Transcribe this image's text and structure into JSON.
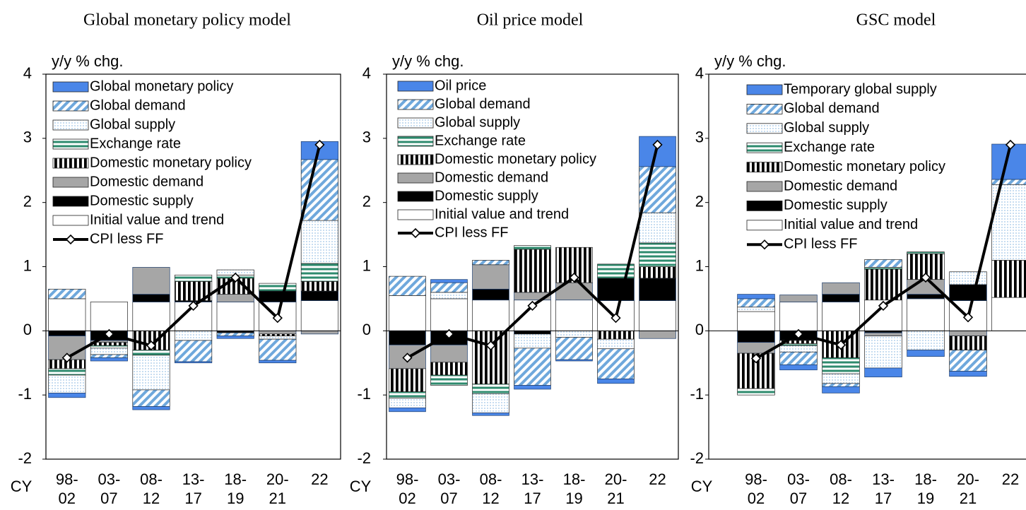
{
  "chart_data": [
    {
      "type": "bar",
      "title": "Global monetary policy model",
      "y_label": "y/y % chg.",
      "x_label": "CY",
      "categories": [
        [
          "98-",
          "02"
        ],
        [
          "03-",
          "07"
        ],
        [
          "08-",
          "12"
        ],
        [
          "13-",
          "17"
        ],
        [
          "18-",
          "19"
        ],
        [
          "20-",
          "21"
        ],
        [
          "22"
        ]
      ],
      "ylim": [
        -2,
        4
      ],
      "yticks": [
        -2,
        -1,
        0,
        1,
        2,
        3,
        4
      ],
      "series": [
        {
          "name": "Global monetary policy",
          "color": "#4a86e8",
          "pattern": "solid",
          "values": [
            -0.07,
            -0.05,
            -0.05,
            -0.02,
            -0.04,
            -0.04,
            0.28
          ]
        },
        {
          "name": "Global demand",
          "color": "#6fa8dc",
          "pattern": "diagonal",
          "values": [
            0.15,
            -0.05,
            -0.26,
            -0.33,
            -0.05,
            -0.33,
            0.95
          ]
        },
        {
          "name": "Global supply",
          "color": "#9fc5e8",
          "pattern": "dots",
          "values": [
            -0.28,
            -0.1,
            -0.54,
            -0.15,
            0.08,
            -0.05,
            0.67
          ]
        },
        {
          "name": "Exchange rate",
          "color": "#2e8b6e",
          "pattern": "hstripe",
          "values": [
            -0.1,
            -0.04,
            -0.08,
            0.1,
            0.05,
            0.12,
            0.28
          ]
        },
        {
          "name": "Domestic monetary policy",
          "color": "#000000",
          "pattern": "vstripe",
          "values": [
            -0.14,
            -0.05,
            -0.3,
            0.3,
            0.25,
            -0.03,
            0.15
          ]
        },
        {
          "name": "Domestic demand",
          "color": "#a6a6a6",
          "pattern": "solid",
          "values": [
            -0.37,
            -0.03,
            0.42,
            0,
            0.12,
            -0.05,
            -0.05
          ]
        },
        {
          "name": "Domestic supply",
          "color": "#000000",
          "pattern": "solid",
          "values": [
            -0.08,
            -0.15,
            0.12,
            0.02,
            -0.03,
            0.17,
            0.15
          ]
        },
        {
          "name": "Initial value and trend",
          "color": "#ffffff",
          "pattern": "solid",
          "values": [
            0.5,
            0.45,
            0.45,
            0.45,
            0.45,
            0.45,
            0.47
          ]
        },
        {
          "name": "CPI less FF",
          "color": "#000000",
          "type": "line",
          "values": [
            -0.42,
            -0.05,
            -0.23,
            0.39,
            0.83,
            0.2,
            2.9
          ]
        }
      ]
    },
    {
      "type": "bar",
      "title": "Oil price model",
      "y_label": "y/y % chg.",
      "x_label": "CY",
      "categories": [
        [
          "98-",
          "02"
        ],
        [
          "03-",
          "07"
        ],
        [
          "08-",
          "12"
        ],
        [
          "13-",
          "17"
        ],
        [
          "18-",
          "19"
        ],
        [
          "20-",
          "21"
        ],
        [
          "22"
        ]
      ],
      "ylim": [
        -2,
        4
      ],
      "yticks": [
        -2,
        -1,
        0,
        1,
        2,
        3,
        4
      ],
      "series": [
        {
          "name": "Oil price",
          "color": "#4a86e8",
          "pattern": "solid",
          "values": [
            -0.06,
            0.05,
            -0.04,
            -0.06,
            -0.02,
            -0.07,
            0.47
          ]
        },
        {
          "name": "Global demand",
          "color": "#6fa8dc",
          "pattern": "diagonal",
          "values": [
            0.3,
            0.15,
            0.07,
            -0.58,
            -0.35,
            -0.47,
            0.72
          ]
        },
        {
          "name": "Global supply",
          "color": "#9fc5e8",
          "pattern": "dots",
          "values": [
            -0.15,
            0.1,
            -0.3,
            -0.22,
            -0.1,
            -0.15,
            0.47
          ]
        },
        {
          "name": "Exchange rate",
          "color": "#2e8b6e",
          "pattern": "hstripe",
          "values": [
            -0.1,
            -0.16,
            -0.15,
            0.06,
            0,
            0.22,
            0.37
          ]
        },
        {
          "name": "Domestic monetary policy",
          "color": "#000000",
          "pattern": "vstripe",
          "values": [
            -0.36,
            -0.2,
            -0.83,
            0.67,
            0.55,
            -0.13,
            0.18
          ]
        },
        {
          "name": "Domestic demand",
          "color": "#a6a6a6",
          "pattern": "solid",
          "values": [
            -0.37,
            -0.27,
            0.38,
            0.12,
            0.27,
            0,
            -0.12
          ]
        },
        {
          "name": "Domestic supply",
          "color": "#000000",
          "pattern": "solid",
          "values": [
            -0.22,
            -0.22,
            0.17,
            -0.05,
            0,
            0.35,
            0.35
          ]
        },
        {
          "name": "Initial value and trend",
          "color": "#ffffff",
          "pattern": "solid",
          "values": [
            0.55,
            0.5,
            0.48,
            0.48,
            0.48,
            0.47,
            0.47
          ]
        },
        {
          "name": "CPI less FF",
          "color": "#000000",
          "type": "line",
          "values": [
            -0.42,
            -0.05,
            -0.23,
            0.39,
            0.83,
            0.2,
            2.9
          ]
        }
      ]
    },
    {
      "type": "bar",
      "title": "GSC model",
      "y_label": "y/y % chg.",
      "x_label": "CY",
      "categories": [
        [
          "98-",
          "02"
        ],
        [
          "03-",
          "07"
        ],
        [
          "08-",
          "12"
        ],
        [
          "13-",
          "17"
        ],
        [
          "18-",
          "19"
        ],
        [
          "20-",
          "21"
        ],
        [
          "22"
        ]
      ],
      "ylim": [
        -2,
        4
      ],
      "yticks": [
        -2,
        -1,
        0,
        1,
        2,
        3,
        4
      ],
      "series": [
        {
          "name": "Temporary global supply",
          "color": "#4a86e8",
          "pattern": "solid",
          "values": [
            0.07,
            -0.08,
            -0.1,
            -0.14,
            -0.1,
            -0.08,
            0.55
          ]
        },
        {
          "name": "Global demand",
          "color": "#6fa8dc",
          "pattern": "diagonal",
          "values": [
            0.13,
            -0.2,
            -0.05,
            0.12,
            0,
            -0.33,
            0.08
          ]
        },
        {
          "name": "Global supply",
          "color": "#9fc5e8",
          "pattern": "dots",
          "values": [
            0.07,
            -0.1,
            -0.15,
            -0.5,
            -0.3,
            0.2,
            1.18
          ]
        },
        {
          "name": "Exchange rate",
          "color": "#2e8b6e",
          "pattern": "hstripe",
          "values": [
            -0.1,
            -0.03,
            -0.25,
            0.03,
            0.03,
            0,
            0
          ]
        },
        {
          "name": "Domestic monetary policy",
          "color": "#000000",
          "pattern": "vstripe",
          "values": [
            -0.55,
            -0.05,
            -0.42,
            0.48,
            0.4,
            -0.22,
            0.58
          ]
        },
        {
          "name": "Domestic demand",
          "color": "#a6a6a6",
          "pattern": "solid",
          "values": [
            -0.17,
            0.11,
            0.18,
            -0.05,
            0.23,
            -0.08,
            0
          ]
        },
        {
          "name": "Domestic supply",
          "color": "#000000",
          "pattern": "solid",
          "values": [
            -0.18,
            -0.15,
            0.12,
            -0.03,
            0.07,
            0.25,
            0
          ]
        },
        {
          "name": "Initial value and trend",
          "color": "#ffffff",
          "pattern": "solid",
          "values": [
            0.3,
            0.45,
            0.45,
            0.48,
            0.5,
            0.47,
            0.52
          ]
        },
        {
          "name": "CPI less FF",
          "color": "#000000",
          "type": "line",
          "values": [
            -0.43,
            -0.05,
            -0.22,
            0.39,
            0.83,
            0.21,
            2.9
          ]
        }
      ]
    }
  ]
}
